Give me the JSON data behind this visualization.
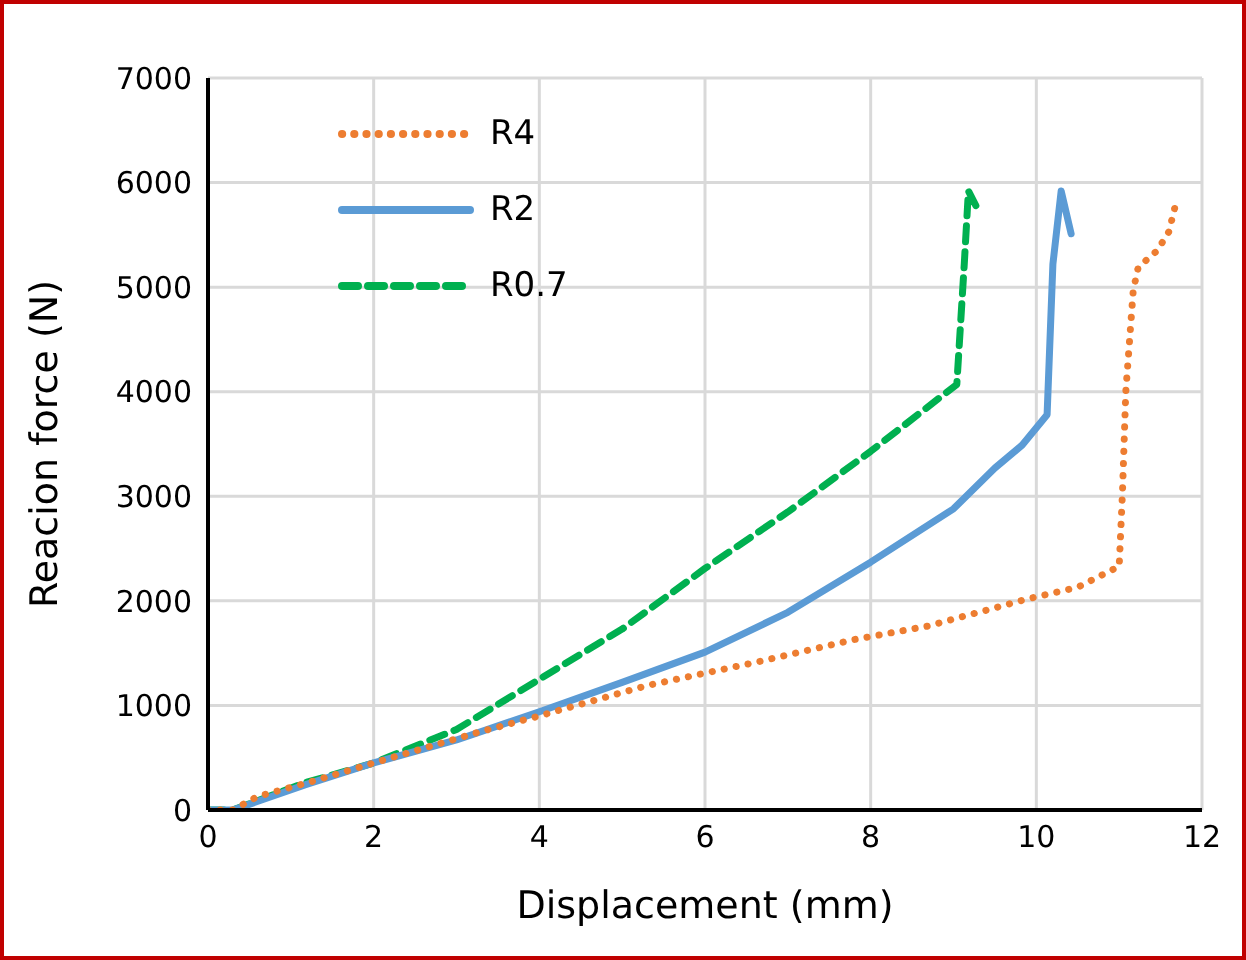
{
  "chart_data": {
    "type": "line",
    "xlabel": "Displacement (mm)",
    "ylabel": "Reacion force (N)",
    "xlim": [
      0,
      12
    ],
    "xticks": [
      0,
      2,
      4,
      6,
      8,
      10,
      12
    ],
    "ylim": [
      0,
      7000
    ],
    "yticks": [
      0,
      1000,
      2000,
      3000,
      4000,
      5000,
      6000,
      7000
    ],
    "grid": true,
    "legend": "top left",
    "series": [
      {
        "name": "R4",
        "color": "#ed7d31",
        "line_style": "dotted",
        "x": [
          0,
          0.3,
          0.6,
          1.2,
          2,
          3.25,
          4,
          5.3,
          6.6,
          7.8,
          8.7,
          9.9,
          10.5,
          11,
          11.04,
          11.08,
          11.17,
          11.23,
          11.46,
          11.6,
          11.7
        ],
        "values": [
          0,
          0,
          130,
          260,
          450,
          740,
          900,
          1190,
          1410,
          1630,
          1760,
          2020,
          2130,
          2330,
          3040,
          4000,
          4970,
          5190,
          5350,
          5530,
          5850
        ]
      },
      {
        "name": "R2",
        "color": "#5b9bd5",
        "line_style": "solid",
        "x": [
          0,
          0.3,
          1.17,
          2,
          3,
          4,
          5,
          6,
          7,
          8,
          9,
          9.5,
          9.83,
          10.13,
          10.2,
          10.3,
          10.42
        ],
        "values": [
          0,
          0,
          240,
          450,
          670,
          940,
          1220,
          1510,
          1890,
          2370,
          2880,
          3270,
          3490,
          3780,
          5220,
          5920,
          5510
        ]
      },
      {
        "name": "R0.7",
        "color": "#00b050",
        "line_style": "dashed",
        "x": [
          0,
          0.3,
          1.17,
          2,
          3,
          4,
          5,
          6,
          7,
          8,
          9.04,
          9.13,
          9.18,
          9.27
        ],
        "values": [
          0,
          0,
          260,
          450,
          770,
          1250,
          1730,
          2310,
          2850,
          3430,
          4070,
          5220,
          5920,
          5780
        ]
      }
    ]
  }
}
